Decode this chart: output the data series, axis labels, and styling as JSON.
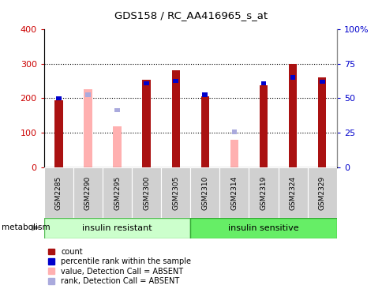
{
  "title": "GDS158 / RC_AA416965_s_at",
  "samples": [
    "GSM2285",
    "GSM2290",
    "GSM2295",
    "GSM2300",
    "GSM2305",
    "GSM2310",
    "GSM2314",
    "GSM2319",
    "GSM2324",
    "GSM2329"
  ],
  "red_values": [
    195,
    0,
    0,
    253,
    280,
    205,
    0,
    237,
    300,
    260
  ],
  "pink_values": [
    0,
    225,
    120,
    0,
    0,
    0,
    80,
    0,
    0,
    0
  ],
  "blue_values": [
    200,
    0,
    0,
    243,
    250,
    210,
    0,
    243,
    260,
    248
  ],
  "lightblue_values": [
    0,
    210,
    165,
    0,
    0,
    0,
    103,
    0,
    0,
    0
  ],
  "absent": [
    false,
    true,
    true,
    false,
    false,
    false,
    true,
    false,
    false,
    false
  ],
  "group1_label": "insulin resistant",
  "group2_label": "insulin sensitive",
  "group1_count": 5,
  "group2_count": 5,
  "category_label": "metabolism",
  "ylim_left": [
    0,
    400
  ],
  "ylim_right": [
    0,
    100
  ],
  "yticks_left": [
    0,
    100,
    200,
    300,
    400
  ],
  "yticks_right": [
    0,
    25,
    50,
    75,
    100
  ],
  "ytick_labels_right": [
    "0",
    "25",
    "50",
    "75",
    "100%"
  ],
  "ytick_labels_left": [
    "0",
    "100",
    "200",
    "300",
    "400"
  ],
  "color_red": "#AA1111",
  "color_pink": "#FFB0B0",
  "color_blue": "#0000CC",
  "color_lightblue": "#AAAADD",
  "color_group1": "#CCFFCC",
  "color_group2": "#66EE66",
  "legend_items": [
    "count",
    "percentile rank within the sample",
    "value, Detection Call = ABSENT",
    "rank, Detection Call = ABSENT"
  ],
  "legend_colors": [
    "#AA1111",
    "#0000CC",
    "#FFB0B0",
    "#AAAADD"
  ]
}
